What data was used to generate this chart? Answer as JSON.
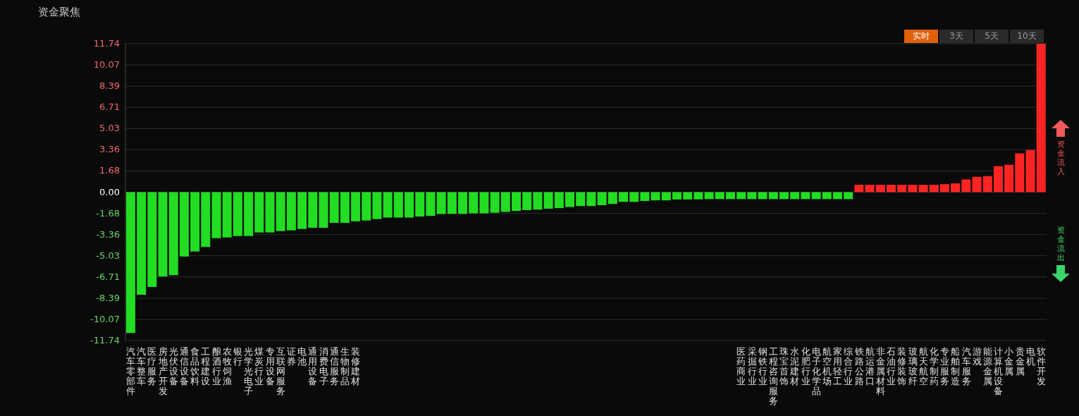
{
  "chart_data": {
    "type": "bar",
    "title": "资金聚焦",
    "categories": [
      "汽车零部件",
      "汽车整车",
      "医疗服务",
      "房地产开发",
      "光伏设备",
      "通信设备",
      "食品饮料",
      "工程建设",
      "酿酒行业",
      "农牧饲渔",
      "银行",
      "光学光电子",
      "煤炭行业",
      "专用设备",
      "互联网服务",
      "证券",
      "电池",
      "通用设备",
      "消费电子",
      "通信服务",
      "生物制品",
      "装修建材",
      null,
      null,
      null,
      null,
      null,
      null,
      null,
      null,
      null,
      null,
      null,
      null,
      null,
      null,
      null,
      null,
      null,
      null,
      null,
      null,
      null,
      null,
      null,
      null,
      null,
      null,
      null,
      null,
      null,
      null,
      null,
      null,
      null,
      null,
      null,
      "医药商业",
      "采掘行业",
      "钢铁行业",
      "工程咨询服务",
      "珠宝首饰",
      "水泥建材",
      "化肥行业",
      "电子化学品",
      "航空机场",
      "家用轻工",
      "综合行业",
      "铁路公路",
      "航运港口",
      "非金属材料",
      "石油行业",
      "装修装饰",
      "玻璃玻纤",
      "航天航空",
      "化学制药",
      "专业服务",
      "船舶制造",
      "汽车服务",
      "游戏",
      "能源金属",
      "计算机设备",
      "小金属",
      "贵金属",
      "电机",
      "软件开发"
    ],
    "values": [
      -11.14,
      -8.12,
      -7.5,
      -6.66,
      -6.57,
      -5.09,
      -4.7,
      -4.33,
      -3.64,
      -3.58,
      -3.47,
      -3.47,
      -3.19,
      -3.19,
      -3.08,
      -3.02,
      -2.91,
      -2.82,
      -2.82,
      -2.43,
      -2.43,
      -2.31,
      -2.24,
      -2.13,
      -2.01,
      -2.01,
      -2.01,
      -1.93,
      -1.88,
      -1.73,
      -1.72,
      -1.72,
      -1.68,
      -1.68,
      -1.63,
      -1.56,
      -1.49,
      -1.42,
      -1.38,
      -1.31,
      -1.26,
      -1.17,
      -1.1,
      -1.1,
      -1.03,
      -0.93,
      -0.77,
      -0.77,
      -0.7,
      -0.65,
      -0.65,
      -0.58,
      -0.58,
      -0.57,
      -0.55,
      -0.55,
      -0.55,
      -0.55,
      -0.55,
      -0.55,
      -0.55,
      -0.55,
      -0.55,
      -0.55,
      -0.55,
      -0.55,
      -0.55,
      -0.55,
      0.58,
      0.58,
      0.58,
      0.58,
      0.58,
      0.58,
      0.58,
      0.58,
      0.63,
      0.69,
      1.0,
      1.21,
      1.27,
      2.05,
      2.16,
      3.07,
      3.33,
      11.74
    ],
    "colors": [
      "#22dd22",
      "#22dd22",
      "#22dd22",
      "#22dd22",
      "#22dd22",
      "#22dd22",
      "#22dd22",
      "#22dd22",
      "#22dd22",
      "#22dd22",
      "#22dd22",
      "#22dd22",
      "#22dd22",
      "#22dd22",
      "#22dd22",
      "#22dd22",
      "#22dd22",
      "#22dd22",
      "#22dd22",
      "#22dd22",
      "#22dd22",
      "#22dd22",
      "#22dd22",
      "#22dd22",
      "#22dd22",
      "#22dd22",
      "#22dd22",
      "#22dd22",
      "#22dd22",
      "#22dd22",
      "#22dd22",
      "#22dd22",
      "#22dd22",
      "#22dd22",
      "#22dd22",
      "#22dd22",
      "#22dd22",
      "#22dd22",
      "#22dd22",
      "#22dd22",
      "#22dd22",
      "#22dd22",
      "#22dd22",
      "#22dd22",
      "#22dd22",
      "#22dd22",
      "#22dd22",
      "#22dd22",
      "#22dd22",
      "#22dd22",
      "#22dd22",
      "#22dd22",
      "#22dd22",
      "#22dd22",
      "#22dd22",
      "#22dd22",
      "#22dd22",
      "#22dd22",
      "#22dd22",
      "#22dd22",
      "#22dd22",
      "#22dd22",
      "#22dd22",
      "#22dd22",
      "#22dd22",
      "#22dd22",
      "#22dd22",
      "#22dd22",
      "#ff2424",
      "#ff2424",
      "#ff2424",
      "#ff2424",
      "#ff2424",
      "#ff2424",
      "#ff2424",
      "#ff2424",
      "#ff2424",
      "#ff2424",
      "#ff2424",
      "#ff2424",
      "#ff2424",
      "#ff2424",
      "#ff2424",
      "#ff2424",
      "#ff2424",
      "#ff2424"
    ],
    "ylim": [
      -11.74,
      11.74
    ],
    "yticks": [
      11.74,
      10.07,
      8.39,
      6.71,
      5.03,
      3.36,
      1.68,
      {
        "value": 0,
        "label": "0.00"
      },
      -1.68,
      -3.36,
      -5.03,
      -6.71,
      -8.39,
      -10.07,
      -11.74
    ],
    "grid": "y",
    "annotations": [
      "实时",
      "3天",
      "5天",
      "10天",
      "资金流入",
      "资金流出"
    ]
  }
}
